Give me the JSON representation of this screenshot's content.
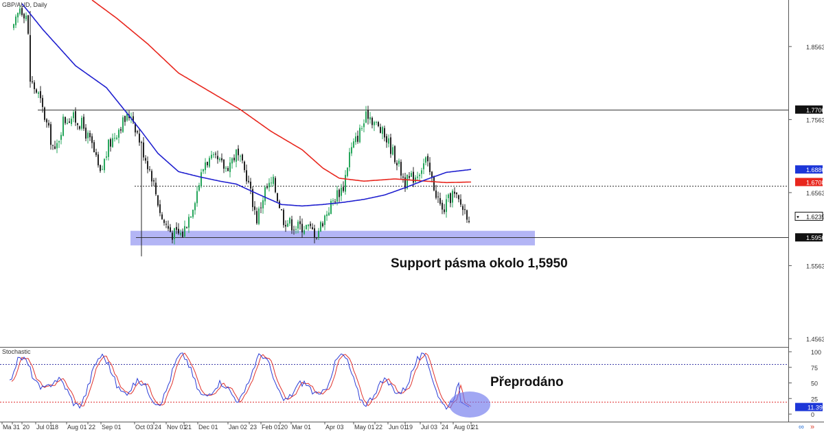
{
  "symbol_label": "GBP/AUD, Daily",
  "indicator_label": "Stochastic",
  "annotations": {
    "support": "Support pásma okolo 1,5950",
    "oversold": "Přeprodáno"
  },
  "colors": {
    "candle_up": "#26a65b",
    "candle_down": "#222222",
    "ma_fast": "#1f1fcf",
    "ma_slow": "#e8261d",
    "zone": "#9a9cf2",
    "stoch_k": "#2a3cd6",
    "stoch_d": "#e0322c",
    "level_upper": "#3d3da8",
    "level_lower": "#e03030",
    "circle": "#6e78ec"
  },
  "chart_data": [
    {
      "type": "candlestick",
      "title": "GBP/AUD, Daily",
      "ylim": [
        1.445,
        1.92
      ],
      "y_ticks": [
        "1.8563",
        "1.7563",
        "1.6563",
        "1.5563",
        "1.4563"
      ],
      "y_tick_values": [
        1.8563,
        1.7563,
        1.6563,
        1.5563,
        1.4563
      ],
      "x_ticks": [
        "Ma",
        "31",
        "20",
        "Jul 01",
        "18",
        "Aug 01",
        "22",
        "Sep 01",
        "Oct 03",
        "24",
        "Nov 01",
        "21",
        "Dec 01",
        "Jan 02",
        "23",
        "Feb 01",
        "20",
        "Mar 01",
        "Apr 03",
        "May 01",
        "22",
        "Jun 01",
        "19",
        "Jul 03",
        "24",
        "Aug 01",
        "21"
      ],
      "price_labels": [
        {
          "text": "1.7700",
          "value": 1.77,
          "style": "black"
        },
        {
          "text": "1.6880",
          "value": 1.688,
          "style": "blue"
        },
        {
          "text": "1.6708",
          "value": 1.6708,
          "style": "red"
        },
        {
          "text": "1.6239",
          "value": 1.6239,
          "style": "black-white"
        },
        {
          "text": "1.5950",
          "value": 1.595,
          "style": "black"
        }
      ],
      "horizontal_lines": [
        {
          "value": 1.77,
          "style": "solid"
        },
        {
          "value": 1.666,
          "style": "dotted"
        },
        {
          "value": 1.595,
          "style": "solid"
        }
      ],
      "support_zone": [
        1.584,
        1.604
      ],
      "close_path": [
        {
          "i": 0,
          "v": 1.88
        },
        {
          "i": 3,
          "v": 1.91
        },
        {
          "i": 6,
          "v": 1.9
        },
        {
          "i": 7,
          "v": 1.87
        },
        {
          "i": 8,
          "v": 1.81
        },
        {
          "i": 12,
          "v": 1.79
        },
        {
          "i": 16,
          "v": 1.75
        },
        {
          "i": 20,
          "v": 1.71
        },
        {
          "i": 24,
          "v": 1.755
        },
        {
          "i": 28,
          "v": 1.76
        },
        {
          "i": 33,
          "v": 1.75
        },
        {
          "i": 38,
          "v": 1.72
        },
        {
          "i": 42,
          "v": 1.68
        },
        {
          "i": 46,
          "v": 1.72
        },
        {
          "i": 52,
          "v": 1.75
        },
        {
          "i": 57,
          "v": 1.765
        },
        {
          "i": 62,
          "v": 1.72
        },
        {
          "i": 67,
          "v": 1.68
        },
        {
          "i": 72,
          "v": 1.62
        },
        {
          "i": 77,
          "v": 1.6
        },
        {
          "i": 82,
          "v": 1.6
        },
        {
          "i": 87,
          "v": 1.64
        },
        {
          "i": 93,
          "v": 1.7
        },
        {
          "i": 98,
          "v": 1.7
        },
        {
          "i": 103,
          "v": 1.69
        },
        {
          "i": 108,
          "v": 1.71
        },
        {
          "i": 113,
          "v": 1.68
        },
        {
          "i": 118,
          "v": 1.62
        },
        {
          "i": 122,
          "v": 1.66
        },
        {
          "i": 126,
          "v": 1.67
        },
        {
          "i": 131,
          "v": 1.62
        },
        {
          "i": 137,
          "v": 1.61
        },
        {
          "i": 142,
          "v": 1.61
        },
        {
          "i": 147,
          "v": 1.6
        },
        {
          "i": 152,
          "v": 1.63
        },
        {
          "i": 157,
          "v": 1.655
        },
        {
          "i": 160,
          "v": 1.665
        },
        {
          "i": 163,
          "v": 1.71
        },
        {
          "i": 168,
          "v": 1.74
        },
        {
          "i": 172,
          "v": 1.765
        },
        {
          "i": 177,
          "v": 1.745
        },
        {
          "i": 181,
          "v": 1.73
        },
        {
          "i": 186,
          "v": 1.7
        },
        {
          "i": 190,
          "v": 1.67
        },
        {
          "i": 195,
          "v": 1.68
        },
        {
          "i": 200,
          "v": 1.7
        },
        {
          "i": 204,
          "v": 1.665
        },
        {
          "i": 208,
          "v": 1.63
        },
        {
          "i": 213,
          "v": 1.655
        },
        {
          "i": 217,
          "v": 1.64
        },
        {
          "i": 221,
          "v": 1.6239
        }
      ],
      "ma_blue": [
        {
          "i": 4,
          "v": 1.915
        },
        {
          "i": 14,
          "v": 1.88
        },
        {
          "i": 30,
          "v": 1.83
        },
        {
          "i": 45,
          "v": 1.8
        },
        {
          "i": 55,
          "v": 1.765
        },
        {
          "i": 62,
          "v": 1.74
        },
        {
          "i": 70,
          "v": 1.71
        },
        {
          "i": 80,
          "v": 1.685
        },
        {
          "i": 90,
          "v": 1.678
        },
        {
          "i": 100,
          "v": 1.672
        },
        {
          "i": 108,
          "v": 1.668
        },
        {
          "i": 118,
          "v": 1.655
        },
        {
          "i": 130,
          "v": 1.64
        },
        {
          "i": 140,
          "v": 1.638
        },
        {
          "i": 150,
          "v": 1.64
        },
        {
          "i": 160,
          "v": 1.643
        },
        {
          "i": 170,
          "v": 1.647
        },
        {
          "i": 180,
          "v": 1.653
        },
        {
          "i": 190,
          "v": 1.663
        },
        {
          "i": 200,
          "v": 1.674
        },
        {
          "i": 210,
          "v": 1.684
        },
        {
          "i": 222,
          "v": 1.688
        }
      ],
      "ma_red": [
        {
          "i": 38,
          "v": 1.92
        },
        {
          "i": 50,
          "v": 1.895
        },
        {
          "i": 65,
          "v": 1.86
        },
        {
          "i": 80,
          "v": 1.82
        },
        {
          "i": 95,
          "v": 1.795
        },
        {
          "i": 110,
          "v": 1.77
        },
        {
          "i": 125,
          "v": 1.74
        },
        {
          "i": 140,
          "v": 1.715
        },
        {
          "i": 150,
          "v": 1.69
        },
        {
          "i": 158,
          "v": 1.676
        },
        {
          "i": 170,
          "v": 1.672
        },
        {
          "i": 185,
          "v": 1.675
        },
        {
          "i": 195,
          "v": 1.673
        },
        {
          "i": 210,
          "v": 1.67
        },
        {
          "i": 222,
          "v": 1.6708
        }
      ]
    },
    {
      "type": "line",
      "title": "Stochastic",
      "ylim": [
        0,
        105
      ],
      "y_ticks": [
        "100",
        "75",
        "50",
        "25",
        "0"
      ],
      "y_tick_values": [
        100,
        75,
        50,
        25,
        0
      ],
      "levels": [
        80,
        20
      ],
      "current_value_label": "11.39",
      "current_value": 11.39
    }
  ]
}
